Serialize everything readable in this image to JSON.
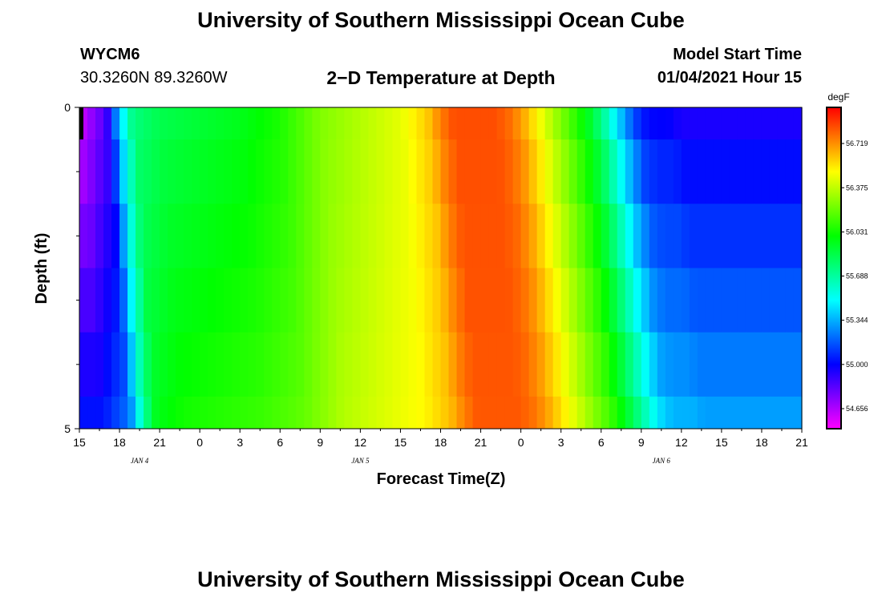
{
  "header": {
    "title": "University of Southern Mississippi Ocean Cube",
    "station_id": "WYCM6",
    "station_coords": "30.3260N 89.3260W",
    "subtitle": "2−D Temperature at Depth",
    "start_label": "Model Start Time",
    "start_value": "01/04/2021 Hour 15"
  },
  "footer": {
    "title": "University of Southern Mississippi Ocean Cube"
  },
  "chart_data": {
    "type": "heatmap",
    "title": "2−D Temperature at Depth",
    "xlabel": "Forecast Time(Z)",
    "ylabel": "Depth (ft)",
    "x_tick_labels": [
      "15",
      "18",
      "21",
      "0",
      "3",
      "6",
      "9",
      "12",
      "15",
      "18",
      "21",
      "0",
      "3",
      "6",
      "9",
      "12",
      "15",
      "18",
      "21"
    ],
    "x_hours_from_start": [
      0,
      3,
      6,
      9,
      12,
      15,
      18,
      21,
      24,
      27,
      30,
      33,
      36,
      39,
      42,
      45,
      48,
      51,
      54
    ],
    "date_labels": [
      {
        "label": "JAN 4",
        "hour": 4.5
      },
      {
        "label": "JAN 5",
        "hour": 21
      },
      {
        "label": "JAN 6",
        "hour": 43.5
      }
    ],
    "y_tick_labels": [
      "0",
      "5"
    ],
    "ylim": [
      0,
      5
    ],
    "depth_rows": [
      0,
      1,
      2,
      3,
      4,
      5
    ],
    "colorbar": {
      "unit": "degF",
      "labels": [
        "56.719",
        "56.375",
        "56.031",
        "55.688",
        "55.344",
        "55.000",
        "54.656"
      ],
      "values": [
        56.719,
        56.375,
        56.031,
        55.688,
        55.344,
        55.0,
        54.656
      ],
      "range": [
        54.5,
        57.0
      ]
    },
    "temperature_profile": {
      "hours": [
        0,
        2,
        3,
        4,
        6,
        9,
        12,
        15,
        18,
        21,
        24,
        26,
        27,
        28,
        29,
        30,
        31,
        32,
        33,
        34,
        35,
        36,
        37,
        38,
        39,
        40,
        41,
        42,
        43,
        44,
        45,
        48,
        51,
        54
      ],
      "surface_degF": [
        54.6,
        54.85,
        55.4,
        55.75,
        55.85,
        55.9,
        55.95,
        56.05,
        56.25,
        56.35,
        56.45,
        56.6,
        56.75,
        56.85,
        56.85,
        56.85,
        56.85,
        56.8,
        56.7,
        56.55,
        56.4,
        56.25,
        56.1,
        55.95,
        55.75,
        55.5,
        55.25,
        55.05,
        55.0,
        55.0,
        54.95,
        54.95,
        54.95,
        54.95
      ]
    }
  }
}
